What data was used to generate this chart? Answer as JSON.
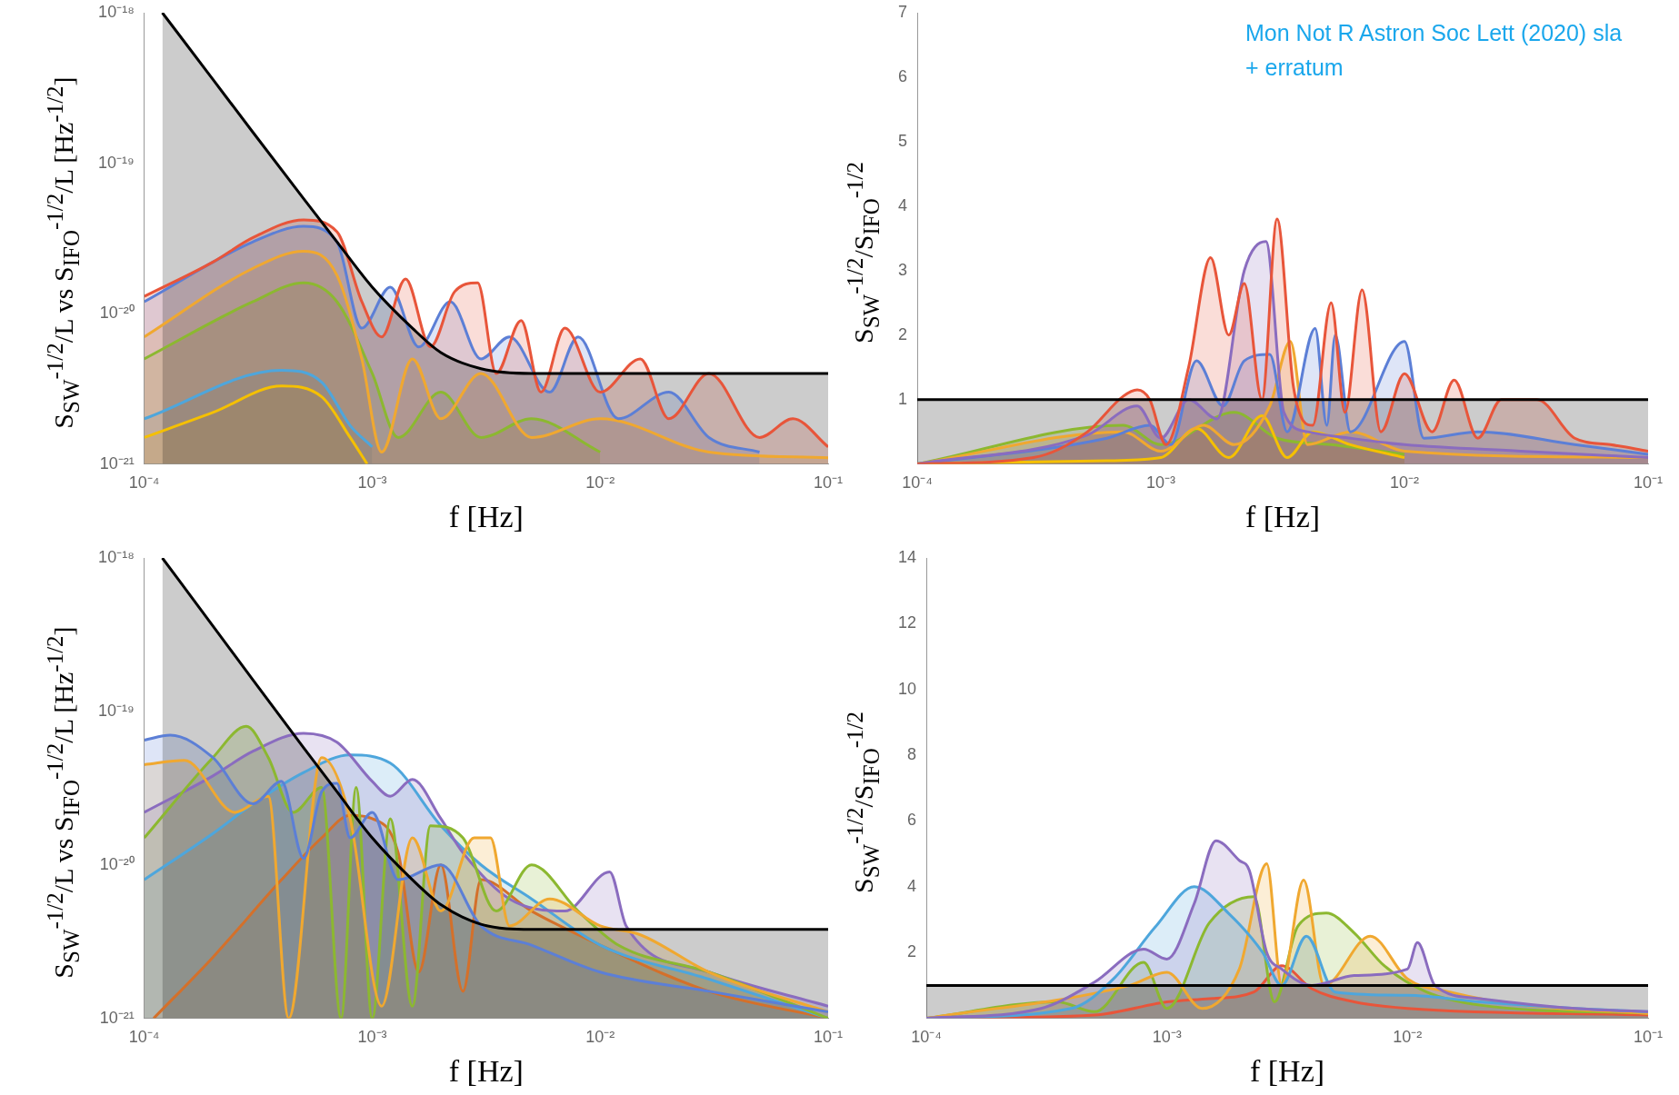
{
  "chart_data": [
    {
      "type": "area",
      "ylabel": "S$_{SW}$$^{-1/2}$/L vs  S$_{IFO}$$^{-1/2}$/L  [Hz$^{-1/2}$]",
      "xlabel": "f [Hz]",
      "log": "xy",
      "xlim": [
        0.0001,
        0.1
      ],
      "ylim": [
        1e-21,
        1e-18
      ],
      "xticks": [
        {
          "value": 0.0001,
          "label": "10⁻⁴"
        },
        {
          "value": 0.001,
          "label": "10⁻³"
        },
        {
          "value": 0.01,
          "label": "10⁻²"
        },
        {
          "value": 0.1,
          "label": "10⁻¹"
        }
      ],
      "yticks": [
        {
          "value": 1e-21,
          "label": "10⁻²¹"
        },
        {
          "value": 1e-20,
          "label": "10⁻²⁰"
        },
        {
          "value": 1e-19,
          "label": "10⁻¹⁹"
        },
        {
          "value": 1e-18,
          "label": "10⁻¹⁸"
        }
      ],
      "series": [
        {
          "type": "area",
          "color": "#4ea6dc",
          "x": [
            0.0001,
            0.0004,
            0.0006,
            0.0008,
            0.001
          ],
          "values": [
            2e-21,
            4.2e-21,
            3.5e-21,
            1.8e-21,
            1.3e-21
          ]
        },
        {
          "type": "area",
          "color": "#f5c000",
          "x": [
            0.0001,
            0.0002,
            0.0004,
            0.0006,
            0.0008,
            0.00095
          ],
          "values": [
            1.5e-21,
            2.2e-21,
            3.3e-21,
            2.8e-21,
            1.5e-21,
            1e-21
          ]
        },
        {
          "type": "area",
          "color": "#8cb830",
          "x": [
            0.0001,
            0.0003,
            0.0005,
            0.0007,
            0.001,
            0.0013,
            0.002,
            0.003,
            0.005,
            0.01
          ],
          "values": [
            5e-21,
            1.2e-20,
            1.6e-20,
            1.2e-20,
            4e-21,
            1.5e-21,
            3e-21,
            1.5e-21,
            2e-21,
            1.2e-21
          ]
        },
        {
          "type": "area",
          "color": "#f0a830",
          "x": [
            0.0001,
            0.0003,
            0.0005,
            0.0007,
            0.0009,
            0.0011,
            0.0015,
            0.002,
            0.003,
            0.005,
            0.01,
            0.03,
            0.1
          ],
          "values": [
            7e-21,
            2e-20,
            2.6e-20,
            1.8e-20,
            5e-21,
            1.2e-21,
            5e-21,
            2e-21,
            4e-21,
            1.5e-21,
            2e-21,
            1.2e-21,
            1.1e-21
          ]
        },
        {
          "type": "area",
          "color": "#5c7fd6",
          "x": [
            0.0001,
            0.0003,
            0.0005,
            0.0007,
            0.0009,
            0.0012,
            0.0016,
            0.0022,
            0.003,
            0.004,
            0.006,
            0.008,
            0.012,
            0.02,
            0.03,
            0.05
          ],
          "values": [
            1.2e-20,
            3e-20,
            3.8e-20,
            3e-20,
            8e-21,
            1.5e-20,
            6e-21,
            1.2e-20,
            5e-21,
            7e-21,
            3e-21,
            7e-21,
            2e-21,
            3e-21,
            1.5e-21,
            1.2e-21
          ]
        },
        {
          "type": "area",
          "color": "#e8553a",
          "x": [
            0.0001,
            0.0002,
            0.0003,
            0.0005,
            0.0007,
            0.0009,
            0.0011,
            0.0014,
            0.0018,
            0.0023,
            0.0029,
            0.0035,
            0.0045,
            0.0055,
            0.007,
            0.01,
            0.015,
            0.02,
            0.03,
            0.05,
            0.07,
            0.1
          ],
          "values": [
            1.3e-20,
            2.2e-20,
            3.2e-20,
            4.2e-20,
            3.5e-20,
            1.2e-20,
            7e-21,
            1.7e-20,
            6e-21,
            1.4e-20,
            1.6e-20,
            4e-21,
            9e-21,
            3e-21,
            8e-21,
            3e-21,
            5e-21,
            2e-21,
            4e-21,
            1.5e-21,
            2e-21,
            1.3e-21
          ]
        },
        {
          "type": "area",
          "color": "#000000",
          "x": [
            0.00012,
            0.0002,
            0.0003,
            0.0005,
            0.0007,
            0.001,
            0.0015,
            0.002,
            0.003,
            0.005,
            0.1
          ],
          "values": [
            1e-18,
            3.6e-19,
            1.6e-19,
            5.8e-20,
            3e-20,
            1.5e-20,
            8e-21,
            5.5e-21,
            4.3e-21,
            4e-21,
            4e-21
          ]
        }
      ]
    },
    {
      "type": "area",
      "ylabel": "S$_{SW}$$^{-1/2}$/S$_{IFO}$$^{-1/2}$",
      "xlabel": "f [Hz]",
      "log": "x",
      "xlim": [
        0.0001,
        0.1
      ],
      "ylim": [
        0,
        7
      ],
      "xticks": [
        {
          "value": 0.0001,
          "label": "10⁻⁴"
        },
        {
          "value": 0.001,
          "label": "10⁻³"
        },
        {
          "value": 0.01,
          "label": "10⁻²"
        },
        {
          "value": 0.1,
          "label": "10⁻¹"
        }
      ],
      "yticks": [
        1,
        2,
        3,
        4,
        5,
        6,
        7
      ],
      "annotations": [
        "Mon Not R Astron Soc Lett (2020) sla",
        "+ erratum"
      ],
      "series": [
        {
          "type": "area",
          "color": "#8cb830",
          "x": [
            0.0001,
            0.0007,
            0.001,
            0.002,
            0.003,
            0.005,
            0.01
          ],
          "values": [
            0,
            0.6,
            0.3,
            0.8,
            0.4,
            0.3,
            0.15
          ]
        },
        {
          "type": "area",
          "color": "#f5c000",
          "x": [
            0.0001,
            0.0006,
            0.001,
            0.0014,
            0.0019,
            0.0026,
            0.0033,
            0.0042,
            0.006,
            0.01
          ],
          "values": [
            0,
            0.05,
            0.1,
            0.55,
            0.1,
            0.75,
            0.1,
            0.5,
            0.3,
            0.1
          ]
        },
        {
          "type": "area",
          "color": "#f0a830",
          "x": [
            0.0001,
            0.0007,
            0.001,
            0.0015,
            0.002,
            0.0028,
            0.0034,
            0.004,
            0.006,
            0.01,
            0.1
          ],
          "values": [
            0,
            0.5,
            0.2,
            0.6,
            0.3,
            0.9,
            1.9,
            0.3,
            0.5,
            0.2,
            0.1
          ]
        },
        {
          "type": "area",
          "color": "#5c7fd6",
          "x": [
            0.0001,
            0.0006,
            0.0009,
            0.0011,
            0.0014,
            0.0018,
            0.0022,
            0.0028,
            0.0033,
            0.0043,
            0.0048,
            0.0052,
            0.006,
            0.01,
            0.012,
            0.02,
            0.05,
            0.1
          ],
          "values": [
            0,
            0.4,
            0.6,
            0.3,
            1.6,
            0.9,
            1.6,
            1.7,
            0.5,
            2.1,
            0.6,
            2,
            0.5,
            1.9,
            0.4,
            0.5,
            0.3,
            0.15
          ]
        },
        {
          "type": "area",
          "color": "#8a6cbf",
          "x": [
            0.0001,
            0.0005,
            0.0008,
            0.001,
            0.0013,
            0.0017,
            0.0022,
            0.0027,
            0.0032,
            0.004,
            0.006,
            0.01,
            0.03,
            0.1
          ],
          "values": [
            0,
            0.45,
            0.9,
            0.4,
            1,
            0.7,
            3,
            3.45,
            0.8,
            0.5,
            0.4,
            0.3,
            0.2,
            0.1
          ]
        },
        {
          "type": "area",
          "color": "#e8553a",
          "x": [
            0.0001,
            0.0003,
            0.0005,
            0.0007,
            0.0008,
            0.0009,
            0.00105,
            0.0013,
            0.0016,
            0.0019,
            0.0022,
            0.0026,
            0.003,
            0.0035,
            0.0042,
            0.005,
            0.0057,
            0.0067,
            0.008,
            0.01,
            0.013,
            0.016,
            0.02,
            0.025,
            0.035,
            0.05,
            0.07,
            0.1
          ],
          "values": [
            0,
            0.1,
            0.5,
            1.05,
            1.15,
            1,
            0.3,
            1.5,
            3.2,
            2,
            2.8,
            1,
            3.8,
            1.2,
            0.6,
            2.5,
            0.8,
            2.7,
            0.5,
            1.4,
            0.5,
            1.3,
            0.4,
            1,
            1,
            0.4,
            0.3,
            0.2
          ]
        },
        {
          "type": "area",
          "color": "#000000",
          "x": [
            0.0001,
            0.1
          ],
          "values": [
            1,
            1
          ]
        }
      ]
    },
    {
      "type": "area",
      "ylabel": "S$_{SW}$$^{-1/2}$/L vs  S$_{IFO}$$^{-1/2}$/L  [Hz$^{-1/2}$]",
      "xlabel": "f [Hz]",
      "log": "xy",
      "xlim": [
        0.0001,
        0.1
      ],
      "ylim": [
        1e-21,
        1e-18
      ],
      "xticks": [
        {
          "value": 0.0001,
          "label": "10⁻⁴"
        },
        {
          "value": 0.001,
          "label": "10⁻³"
        },
        {
          "value": 0.01,
          "label": "10⁻²"
        },
        {
          "value": 0.1,
          "label": "10⁻¹"
        }
      ],
      "yticks": [
        {
          "value": 1e-21,
          "label": "10⁻²¹"
        },
        {
          "value": 1e-20,
          "label": "10⁻²⁰"
        },
        {
          "value": 1e-19,
          "label": "10⁻¹⁹"
        },
        {
          "value": 1e-18,
          "label": "10⁻¹⁸"
        }
      ],
      "series": [
        {
          "type": "area",
          "color": "#d4702a",
          "x": [
            0.00011,
            0.0002,
            0.0004,
            0.0006,
            0.0008,
            0.001,
            0.0013,
            0.0016,
            0.002,
            0.0025,
            0.003,
            0.005,
            0.01,
            0.03,
            0.1
          ],
          "values": [
            1e-21,
            2.5e-21,
            8e-21,
            1.5e-20,
            2.1e-20,
            2e-20,
            1.2e-20,
            2e-21,
            1e-20,
            1.5e-21,
            8e-21,
            5e-21,
            3e-21,
            1.5e-21,
            1e-21
          ]
        },
        {
          "type": "area",
          "color": "#4ea6dc",
          "x": [
            0.0001,
            0.0002,
            0.0003,
            0.0005,
            0.0008,
            0.0012,
            0.002,
            0.003,
            0.005,
            0.01,
            0.03,
            0.1
          ],
          "values": [
            8e-21,
            1.6e-20,
            2.5e-20,
            4e-20,
            5.2e-20,
            4.6e-20,
            1.8e-20,
            1e-20,
            6e-21,
            3e-21,
            1.8e-21,
            1e-21
          ]
        },
        {
          "type": "area",
          "color": "#8a6cbf",
          "x": [
            0.0001,
            0.0002,
            0.0003,
            0.0005,
            0.0007,
            0.001,
            0.0012,
            0.0015,
            0.002,
            0.0025,
            0.004,
            0.007,
            0.011,
            0.013,
            0.03,
            0.1
          ],
          "values": [
            2.2e-20,
            3.8e-20,
            5.5e-20,
            7.2e-20,
            6.3e-20,
            3.5e-20,
            2.8e-20,
            3.6e-20,
            2e-20,
            1.2e-20,
            6e-21,
            5e-21,
            9e-21,
            4e-21,
            2e-21,
            1.2e-21
          ]
        },
        {
          "type": "area",
          "color": "#8cb830",
          "x": [
            0.0001,
            0.0002,
            0.00028,
            0.00035,
            0.00045,
            0.0006,
            0.00073,
            0.00085,
            0.001,
            0.0012,
            0.0015,
            0.0018,
            0.0025,
            0.0035,
            0.005,
            0.008,
            0.012,
            0.03,
            0.1
          ],
          "values": [
            1.5e-20,
            5e-20,
            8e-20,
            5e-20,
            2.2e-20,
            3.2e-20,
            1e-21,
            3.2e-20,
            1e-21,
            2e-20,
            1.2e-21,
            1.8e-20,
            1.5e-20,
            5e-21,
            1e-20,
            5e-21,
            3e-21,
            2e-21,
            1e-21
          ]
        },
        {
          "type": "area",
          "color": "#f0a830",
          "x": [
            0.0001,
            0.00015,
            0.00025,
            0.00035,
            0.00043,
            0.0006,
            0.0008,
            0.0011,
            0.0015,
            0.002,
            0.0028,
            0.0033,
            0.004,
            0.006,
            0.01,
            0.015,
            0.03,
            0.1
          ],
          "values": [
            4.5e-20,
            4.8e-20,
            2.2e-20,
            2.8e-20,
            1e-21,
            5e-20,
            2e-20,
            1.2e-21,
            1.5e-20,
            5e-21,
            1.5e-20,
            1.5e-20,
            4e-21,
            6e-21,
            4e-21,
            3.5e-21,
            2e-21,
            1.1e-21
          ]
        },
        {
          "type": "area",
          "color": "#5c7fd6",
          "x": [
            0.0001,
            0.00013,
            0.0002,
            0.0003,
            0.0004,
            0.0005,
            0.0006,
            0.0007,
            0.0008,
            0.001,
            0.0013,
            0.002,
            0.003,
            0.005,
            0.01,
            0.03,
            0.1
          ],
          "values": [
            6.5e-20,
            7e-20,
            5e-20,
            2.5e-20,
            3.5e-20,
            1.1e-20,
            3e-20,
            3.4e-20,
            1.5e-20,
            2.2e-20,
            8e-21,
            1e-20,
            4e-21,
            3e-21,
            2e-21,
            1.5e-21,
            1.1e-21
          ]
        },
        {
          "type": "area",
          "color": "#000000",
          "x": [
            0.00012,
            0.0002,
            0.0003,
            0.0005,
            0.0007,
            0.001,
            0.0015,
            0.002,
            0.003,
            0.005,
            0.1
          ],
          "values": [
            1e-18,
            3.6e-19,
            1.6e-19,
            5.8e-20,
            3e-20,
            1.5e-20,
            8e-21,
            5.5e-21,
            4.1e-21,
            3.8e-21,
            3.8e-21
          ]
        }
      ]
    },
    {
      "type": "area",
      "ylabel": "S$_{SW}$$^{-1/2}$/S$_{IFO}$$^{-1/2}$",
      "xlabel": "f [Hz]",
      "log": "x",
      "xlim": [
        0.0001,
        0.1
      ],
      "ylim": [
        0,
        14
      ],
      "xticks": [
        {
          "value": 0.0001,
          "label": "10⁻⁴"
        },
        {
          "value": 0.001,
          "label": "10⁻³"
        },
        {
          "value": 0.01,
          "label": "10⁻²"
        },
        {
          "value": 0.1,
          "label": "10⁻¹"
        }
      ],
      "yticks": [
        2,
        4,
        6,
        8,
        10,
        12,
        14
      ],
      "series": [
        {
          "type": "area",
          "color": "#e8553a",
          "x": [
            0.0001,
            0.0005,
            0.001,
            0.0015,
            0.0023,
            0.003,
            0.004,
            0.006,
            0.01,
            0.1
          ],
          "values": [
            0,
            0.1,
            0.5,
            0.6,
            0.8,
            1.6,
            0.9,
            0.5,
            0.3,
            0.1
          ]
        },
        {
          "type": "area",
          "color": "#8cb830",
          "x": [
            0.0001,
            0.00035,
            0.0005,
            0.0008,
            0.001,
            0.0015,
            0.0023,
            0.0028,
            0.0035,
            0.0046,
            0.006,
            0.008,
            0.012,
            0.02,
            0.1
          ],
          "values": [
            0,
            0.5,
            0.2,
            1.7,
            0.3,
            2.9,
            3.7,
            0.5,
            2.8,
            3.2,
            2.6,
            1.6,
            0.8,
            0.4,
            0.15
          ]
        },
        {
          "type": "area",
          "color": "#f0a830",
          "x": [
            0.0001,
            0.0007,
            0.001,
            0.0014,
            0.002,
            0.0026,
            0.003,
            0.0037,
            0.0045,
            0.007,
            0.01,
            0.015,
            0.03,
            0.1
          ],
          "values": [
            0,
            1,
            1.4,
            0.3,
            1.5,
            4.7,
            1,
            4.2,
            1,
            2.5,
            1.2,
            0.8,
            0.4,
            0.15
          ]
        },
        {
          "type": "area",
          "color": "#4ea6dc",
          "x": [
            0.0001,
            0.0004,
            0.0006,
            0.0009,
            0.0013,
            0.0018,
            0.0025,
            0.003,
            0.0038,
            0.005,
            0.01,
            0.02,
            0.05,
            0.1
          ],
          "values": [
            0,
            0.3,
            1.2,
            2.8,
            4,
            3.2,
            2,
            1,
            2.5,
            0.8,
            0.7,
            0.5,
            0.3,
            0.2
          ]
        },
        {
          "type": "area",
          "color": "#8a6cbf",
          "x": [
            0.0001,
            0.0003,
            0.0005,
            0.0008,
            0.001,
            0.0013,
            0.0016,
            0.002,
            0.0022,
            0.0026,
            0.003,
            0.004,
            0.006,
            0.01,
            0.011,
            0.013,
            0.02,
            0.05,
            0.1
          ],
          "values": [
            0,
            0.3,
            1.1,
            2.1,
            1.8,
            3.5,
            5.4,
            4.8,
            4.5,
            2,
            1.5,
            1,
            1.3,
            1.5,
            2.3,
            1,
            0.6,
            0.3,
            0.2
          ]
        },
        {
          "type": "area",
          "color": "#000000",
          "x": [
            0.0001,
            0.1
          ],
          "values": [
            1,
            1
          ]
        }
      ]
    }
  ]
}
